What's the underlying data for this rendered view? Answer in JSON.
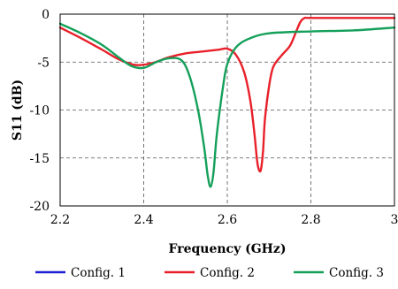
{
  "chart_data": {
    "type": "line",
    "xlabel": "Frequency (GHz)",
    "ylabel": "S11 (dB)",
    "xlim": [
      2.2,
      3.0
    ],
    "ylim": [
      -20,
      0
    ],
    "xticks": [
      2.2,
      2.4,
      2.6,
      2.8,
      3.0
    ],
    "xtick_labels": [
      "2.2",
      "2.4",
      "2.6",
      "2.8",
      "3"
    ],
    "yticks": [
      0,
      -5,
      -10,
      -15,
      -20
    ],
    "ytick_labels": [
      "0",
      "-5",
      "-10",
      "-15",
      "-20"
    ],
    "grid": true,
    "legend_position": "bottom",
    "series": [
      {
        "name": "Config. 1",
        "color": "#1f1fd6",
        "x": [],
        "y": []
      },
      {
        "name": "Config. 2",
        "color": "#e8202a",
        "x": [
          2.2,
          2.25,
          2.3,
          2.34,
          2.38,
          2.42,
          2.46,
          2.5,
          2.54,
          2.58,
          2.6,
          2.62,
          2.64,
          2.655,
          2.665,
          2.672,
          2.678,
          2.682,
          2.686,
          2.69,
          2.7,
          2.71,
          2.73,
          2.75,
          2.765,
          2.775,
          2.785,
          2.8,
          2.9,
          3.0
        ],
        "y": [
          -1.4,
          -2.5,
          -3.7,
          -4.7,
          -5.3,
          -5.1,
          -4.5,
          -4.1,
          -3.9,
          -3.7,
          -3.6,
          -4.2,
          -6.0,
          -9.0,
          -12.5,
          -15.5,
          -16.4,
          -15.8,
          -14.0,
          -11.0,
          -7.5,
          -5.5,
          -4.3,
          -3.3,
          -1.8,
          -0.8,
          -0.4,
          -0.4,
          -0.4,
          -0.4
        ]
      },
      {
        "name": "Config. 3",
        "color": "#14a05a",
        "x": [
          2.2,
          2.25,
          2.3,
          2.34,
          2.37,
          2.4,
          2.43,
          2.46,
          2.49,
          2.51,
          2.53,
          2.545,
          2.553,
          2.56,
          2.567,
          2.575,
          2.59,
          2.6,
          2.62,
          2.65,
          2.7,
          2.8,
          2.9,
          3.0
        ],
        "y": [
          -1.0,
          -2.0,
          -3.2,
          -4.5,
          -5.4,
          -5.6,
          -5.0,
          -4.6,
          -4.8,
          -6.5,
          -10.0,
          -14.0,
          -16.8,
          -18.0,
          -16.5,
          -12.5,
          -7.5,
          -5.2,
          -3.5,
          -2.6,
          -2.0,
          -1.8,
          -1.7,
          -1.4
        ]
      }
    ]
  }
}
